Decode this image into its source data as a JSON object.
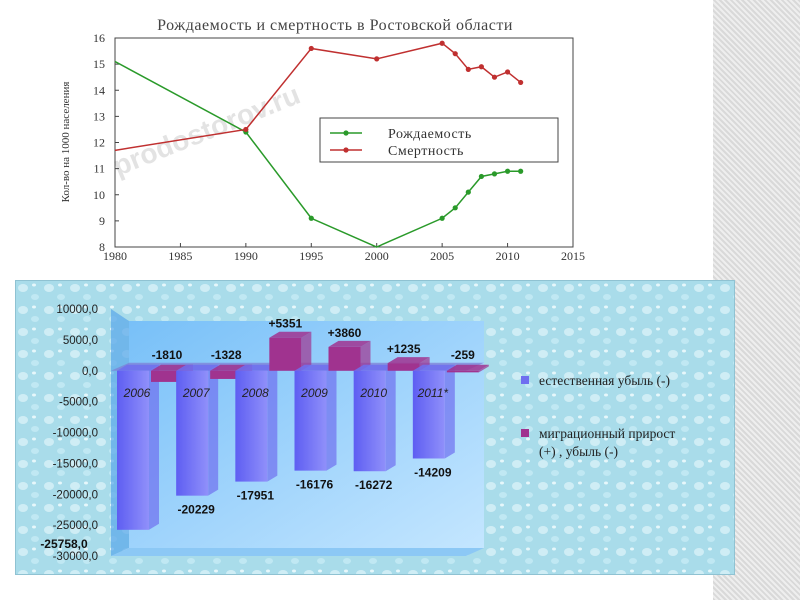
{
  "slide": {
    "band_color": "#e0e0e0"
  },
  "chart_data": [
    {
      "type": "line",
      "title": "Рождаемость и смертность в Ростовской области",
      "xlabel": "",
      "ylabel": "Кол-во на 1000 населения",
      "xlim": [
        1980,
        2015
      ],
      "ylim": [
        8,
        16
      ],
      "xticks": [
        "1980",
        "1985",
        "1990",
        "1995",
        "2000",
        "2005",
        "2010",
        "2015"
      ],
      "yticks": [
        "8",
        "9",
        "10",
        "11",
        "12",
        "13",
        "14",
        "15",
        "16"
      ],
      "watermark": "prodostorov.ru",
      "legend_position": "center-right",
      "series": [
        {
          "name": "Рождаемость",
          "color": "#2a9a2a",
          "x": [
            1980,
            1990,
            1995,
            2000,
            2005,
            2006,
            2007,
            2008,
            2009,
            2010,
            2011
          ],
          "y": [
            15.1,
            12.4,
            9.1,
            8.0,
            9.1,
            9.5,
            10.1,
            10.7,
            10.8,
            10.9,
            10.9
          ],
          "marked": [
            false,
            true,
            true,
            false,
            true,
            true,
            true,
            true,
            true,
            true,
            true
          ]
        },
        {
          "name": "Смертность",
          "color": "#c03030",
          "x": [
            1980,
            1990,
            1995,
            2000,
            2005,
            2006,
            2007,
            2008,
            2009,
            2010,
            2011
          ],
          "y": [
            11.7,
            12.5,
            15.6,
            15.2,
            15.8,
            15.4,
            14.8,
            14.9,
            14.5,
            14.7,
            14.3
          ],
          "marked": [
            false,
            true,
            true,
            true,
            true,
            true,
            true,
            true,
            true,
            true,
            true
          ]
        }
      ]
    },
    {
      "type": "bar",
      "categories": [
        "2006",
        "2007",
        "2008",
        "2009",
        "2010",
        "2011*"
      ],
      "ylim": [
        -30000,
        10000
      ],
      "yticks": [
        "10000,0",
        "5000,0",
        "0,0",
        "-5000,0",
        "-10000,0",
        "-15000,0",
        "-20000,0",
        "-25000,0",
        "-30000,0"
      ],
      "series": [
        {
          "name": "естественная убыль (-)",
          "color": "#6f6ff0",
          "values": [
            -25758,
            -20229,
            -17951,
            -16176,
            -16272,
            -14209
          ],
          "labels": [
            "-25758,0",
            "-20229",
            "-17951",
            "-16176",
            "-16272",
            "-14209"
          ]
        },
        {
          "name": "миграционный прирост (+) , убыль (-)",
          "color": "#a0338f",
          "values": [
            -1810,
            -1328,
            5351,
            3860,
            1235,
            -259
          ],
          "labels": [
            "-1810",
            "-1328",
            "+5351",
            "+3860",
            "+1235",
            "-259"
          ]
        }
      ]
    }
  ]
}
